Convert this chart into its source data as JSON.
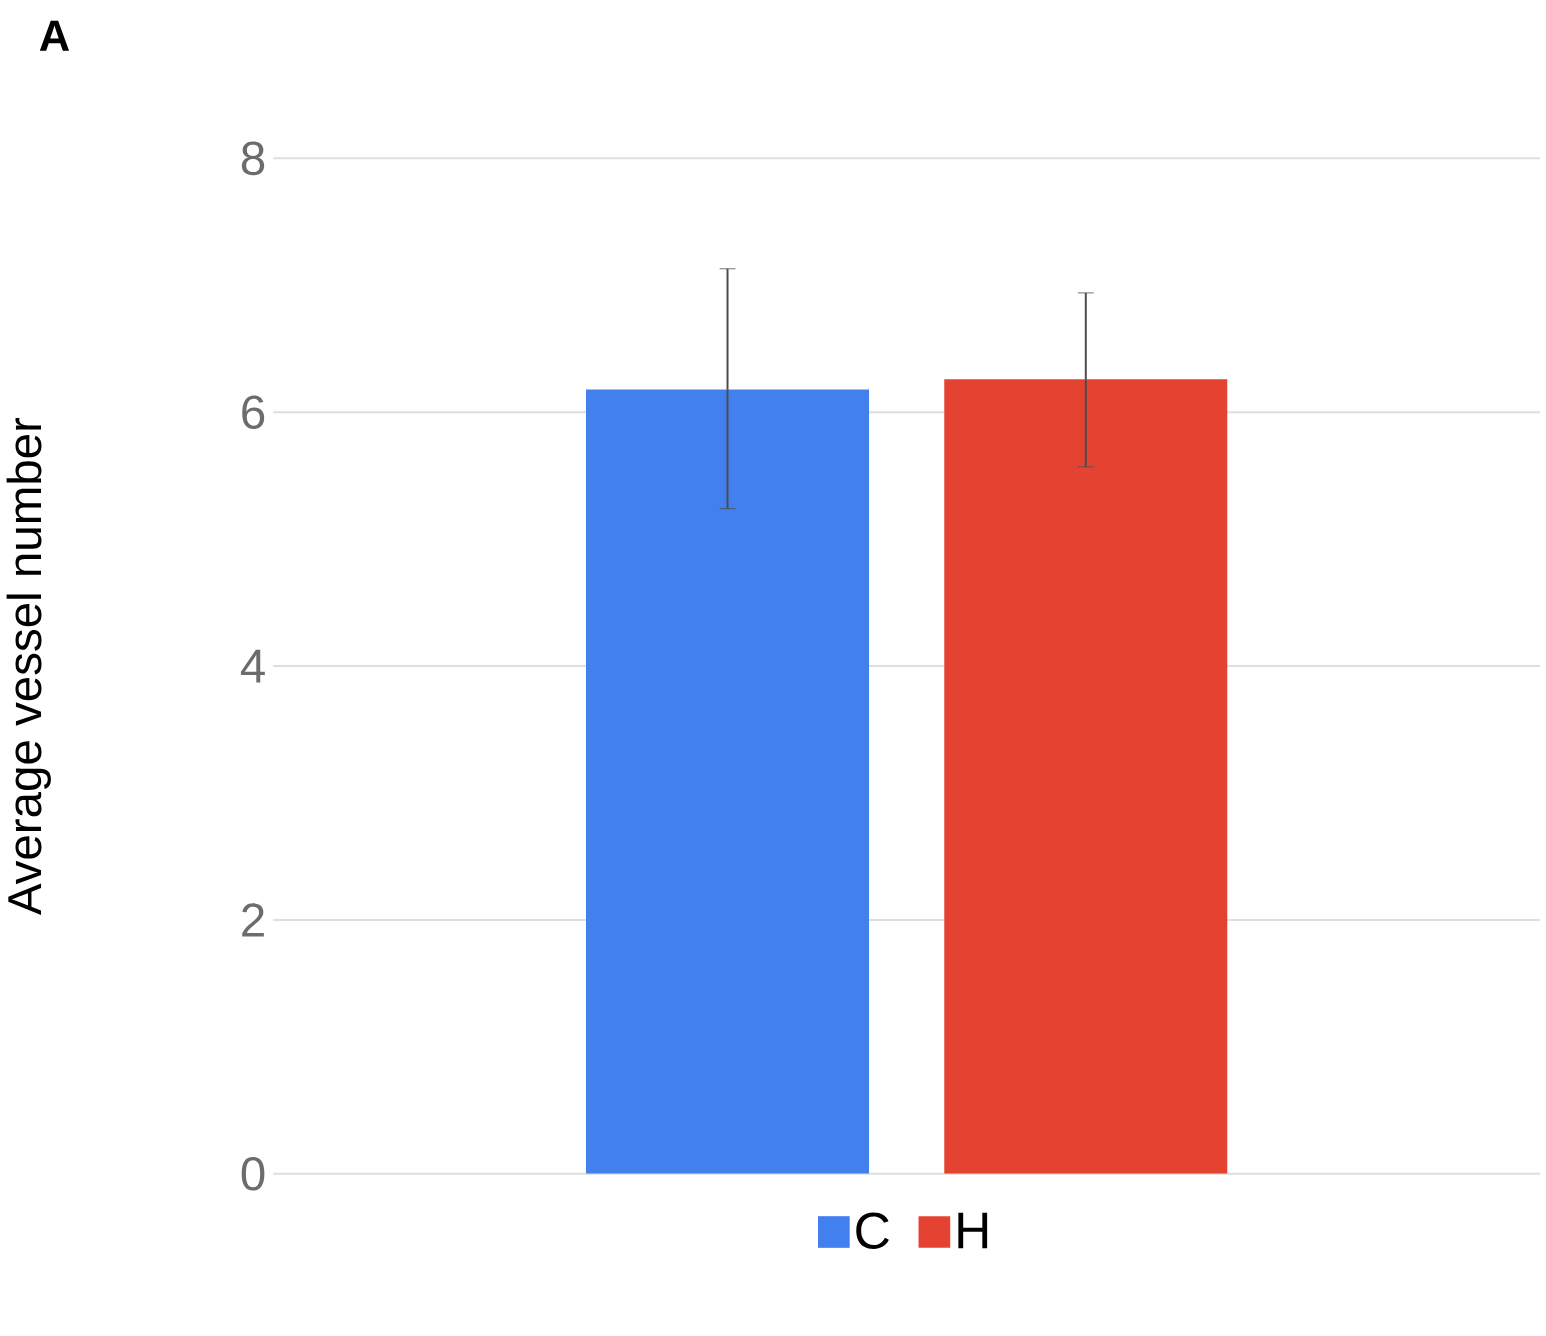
{
  "chart_data": {
    "type": "bar",
    "title": "A",
    "ylabel": "Average vessel number",
    "categories": [
      null
    ],
    "series": [
      {
        "name": "C",
        "color": "#4280f0",
        "values": [
          6.18
        ],
        "errors": [
          [
            5.24,
            7.13
          ]
        ]
      },
      {
        "name": "H",
        "color": "#e54332",
        "values": [
          6.26
        ],
        "errors": [
          [
            5.57,
            6.94
          ]
        ]
      }
    ],
    "ylim": [
      0,
      8
    ],
    "yticks": [
      0,
      2,
      4,
      6,
      8
    ],
    "grid": "y",
    "legend": "bottom"
  }
}
